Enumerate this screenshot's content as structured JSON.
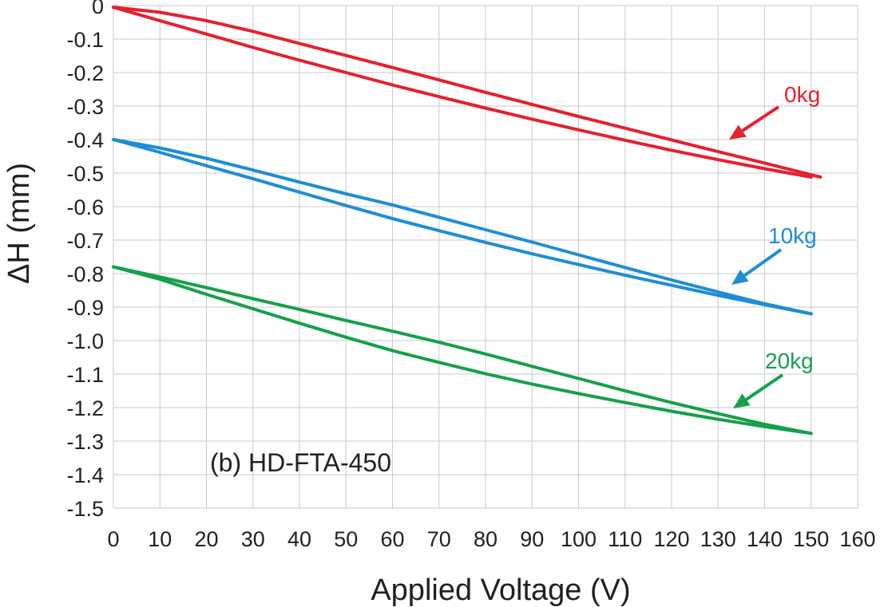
{
  "chart_data": {
    "type": "line",
    "title": "",
    "annotation": "(b) HD-FTA-450",
    "xlabel": "Applied Voltage (V)",
    "ylabel": "ΔH (mm)",
    "xlim": [
      0,
      160
    ],
    "ylim": [
      -1.5,
      0
    ],
    "xticks": [
      "0",
      "10",
      "20",
      "30",
      "40",
      "50",
      "60",
      "70",
      "80",
      "90",
      "100",
      "110",
      "120",
      "130",
      "140",
      "150",
      "160"
    ],
    "yticks": [
      "0",
      "-0.1",
      "-0.2",
      "-0.3",
      "-0.4",
      "-0.5",
      "-0.6",
      "-0.7",
      "-0.8",
      "-0.9",
      "-1.0",
      "-1.1",
      "-1.2",
      "-1.3",
      "-1.4",
      "-1.5"
    ],
    "grid": true,
    "legend": "none",
    "series": [
      {
        "name": "0kg",
        "color": "#e5202f",
        "loading": {
          "x": [
            0,
            10,
            20,
            30,
            40,
            50,
            60,
            70,
            80,
            90,
            100,
            110,
            120,
            130,
            140,
            150
          ],
          "y": [
            -0.005,
            -0.045,
            -0.085,
            -0.125,
            -0.163,
            -0.2,
            -0.237,
            -0.272,
            -0.306,
            -0.339,
            -0.371,
            -0.402,
            -0.432,
            -0.46,
            -0.487,
            -0.512
          ]
        },
        "unloading": {
          "x": [
            152,
            140,
            130,
            120,
            110,
            100,
            90,
            80,
            70,
            60,
            50,
            40,
            30,
            20,
            10,
            0
          ],
          "y": [
            -0.512,
            -0.47,
            -0.436,
            -0.401,
            -0.366,
            -0.331,
            -0.295,
            -0.259,
            -0.222,
            -0.185,
            -0.149,
            -0.113,
            -0.077,
            -0.045,
            -0.02,
            -0.005
          ]
        }
      },
      {
        "name": "10kg",
        "color": "#1f8dd6",
        "loading": {
          "x": [
            0,
            10,
            20,
            30,
            40,
            50,
            60,
            70,
            80,
            90,
            100,
            110,
            120,
            130,
            140,
            150
          ],
          "y": [
            -0.4,
            -0.438,
            -0.478,
            -0.517,
            -0.557,
            -0.597,
            -0.636,
            -0.672,
            -0.707,
            -0.741,
            -0.773,
            -0.805,
            -0.835,
            -0.865,
            -0.893,
            -0.92
          ]
        },
        "unloading": {
          "x": [
            150,
            140,
            130,
            120,
            110,
            100,
            90,
            80,
            70,
            60,
            50,
            40,
            30,
            20,
            10,
            0
          ],
          "y": [
            -0.92,
            -0.89,
            -0.855,
            -0.819,
            -0.782,
            -0.744,
            -0.706,
            -0.669,
            -0.632,
            -0.595,
            -0.562,
            -0.527,
            -0.491,
            -0.456,
            -0.425,
            -0.4
          ]
        }
      },
      {
        "name": "20kg",
        "color": "#16a04c",
        "loading": {
          "x": [
            0,
            10,
            20,
            30,
            40,
            50,
            60,
            70,
            80,
            90,
            100,
            110,
            120,
            130,
            140,
            150
          ],
          "y": [
            -0.78,
            -0.817,
            -0.862,
            -0.905,
            -0.948,
            -0.99,
            -1.03,
            -1.065,
            -1.099,
            -1.13,
            -1.158,
            -1.185,
            -1.211,
            -1.235,
            -1.257,
            -1.277
          ]
        },
        "unloading": {
          "x": [
            150,
            140,
            130,
            120,
            110,
            100,
            90,
            80,
            70,
            60,
            50,
            40,
            30,
            20,
            10,
            0
          ],
          "y": [
            -1.277,
            -1.25,
            -1.218,
            -1.185,
            -1.15,
            -1.113,
            -1.077,
            -1.04,
            -1.005,
            -0.972,
            -0.94,
            -0.907,
            -0.875,
            -0.842,
            -0.81,
            -0.78
          ]
        }
      }
    ]
  }
}
